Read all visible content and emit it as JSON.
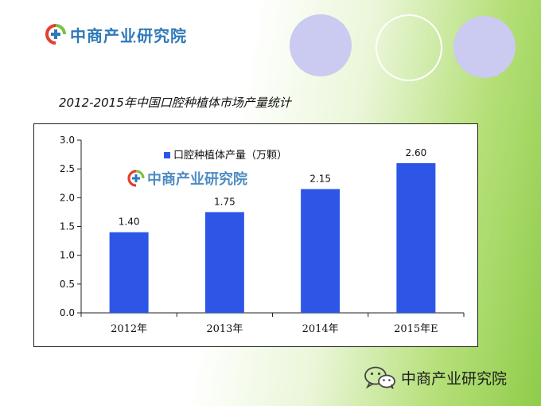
{
  "brand": {
    "name": "中商产业研究院",
    "colors": {
      "blue": "#2f79b8",
      "red": "#e2412c",
      "green": "#7cc043"
    }
  },
  "slide": {
    "title": "2012-2015年中国口腔种植体市场产量统计"
  },
  "chart_watermark": "中商产业研究院",
  "footer": {
    "brand": "中商产业研究院",
    "icon": "wechat-icon"
  },
  "chart_data": {
    "type": "bar",
    "categories": [
      "2012年",
      "2013年",
      "2014年",
      "2015年E"
    ],
    "series": [
      {
        "name": "口腔种植体产量（万颗）",
        "values": [
          1.4,
          1.75,
          2.15,
          2.6
        ]
      }
    ],
    "value_labels": [
      "1.40",
      "1.75",
      "2.15",
      "2.60"
    ],
    "ylim": [
      0,
      3.0
    ],
    "yticks": [
      "0.0",
      "0.5",
      "1.0",
      "1.5",
      "2.0",
      "2.5",
      "3.0"
    ],
    "bar_color": "#2e56e6",
    "grid": false,
    "legend_position": "top-left"
  }
}
